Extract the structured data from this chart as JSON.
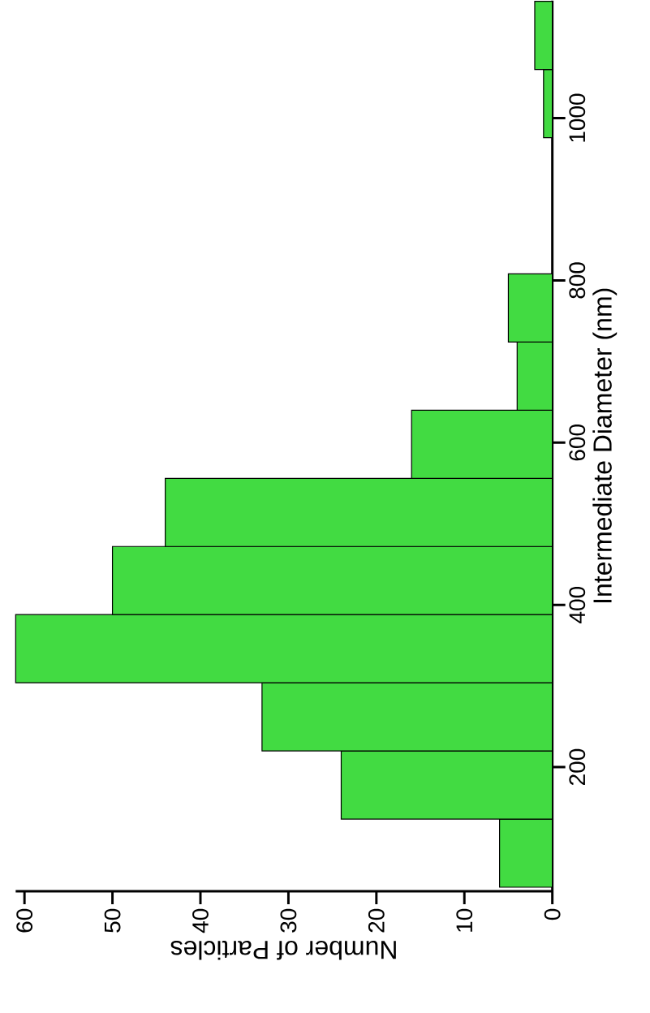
{
  "chart_data": {
    "type": "histogram",
    "orientation": "horizontal",
    "xlabel": "Number of Particles",
    "ylabel": "Intermediate Diameter (nm)",
    "color": "#42db42",
    "bins": [
      52,
      136,
      220,
      304,
      388,
      472,
      556,
      640,
      724,
      808,
      892,
      976,
      1060,
      1144
    ],
    "values": [
      6,
      24,
      33,
      61,
      50,
      44,
      16,
      4,
      5,
      0,
      0,
      1,
      2
    ],
    "xlim": [
      61,
      0
    ],
    "xticks": [
      0,
      10,
      20,
      30,
      40,
      50,
      60
    ],
    "ylim": [
      47,
      1145
    ],
    "yticks": [
      200,
      400,
      600,
      800,
      1000
    ]
  }
}
